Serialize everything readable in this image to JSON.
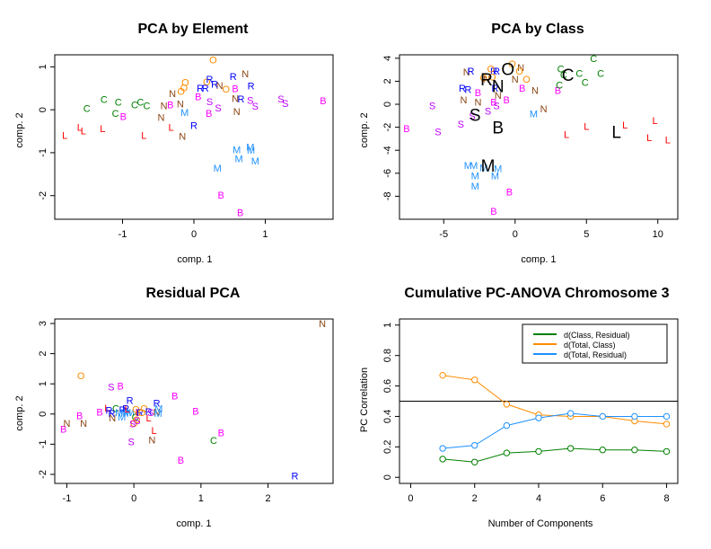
{
  "colors": {
    "B": "#ff00ff",
    "C": "#008000",
    "L": "#ff0000",
    "M": "#1e90ff",
    "N": "#8b4513",
    "O": "#ff8c00",
    "R": "#0000ff",
    "S": "#bf00ff",
    "centroid": "#000000"
  },
  "chart_data": [
    {
      "type": "scatter",
      "title": "PCA by Element",
      "xlabel": "comp. 1",
      "ylabel": "comp. 2",
      "xlim": [
        -1.95,
        1.95
      ],
      "ylim": [
        -2.55,
        1.28
      ],
      "xticks": [
        -1,
        0,
        1
      ],
      "yticks": [
        -2,
        -1,
        0,
        1
      ],
      "points": [
        {
          "x": -1.81,
          "y": -0.59,
          "label": "L"
        },
        {
          "x": -1.6,
          "y": -0.4,
          "label": "L"
        },
        {
          "x": -1.55,
          "y": -0.49,
          "label": "L"
        },
        {
          "x": -1.28,
          "y": -0.44,
          "label": "L"
        },
        {
          "x": -0.7,
          "y": -0.59,
          "label": "L"
        },
        {
          "x": -0.32,
          "y": -0.4,
          "label": "L"
        },
        {
          "x": -1.5,
          "y": 0.03,
          "label": "C"
        },
        {
          "x": -1.26,
          "y": 0.24,
          "label": "C"
        },
        {
          "x": -1.06,
          "y": 0.18,
          "label": "C"
        },
        {
          "x": -1.1,
          "y": -0.08,
          "label": "C"
        },
        {
          "x": -0.83,
          "y": 0.12,
          "label": "C"
        },
        {
          "x": -0.75,
          "y": 0.18,
          "label": "C"
        },
        {
          "x": -0.66,
          "y": 0.1,
          "label": "C"
        },
        {
          "x": -0.99,
          "y": -0.15,
          "label": "B"
        },
        {
          "x": -0.33,
          "y": 0.12,
          "label": "B"
        },
        {
          "x": 0.06,
          "y": 0.31,
          "label": "B"
        },
        {
          "x": 0.21,
          "y": -0.08,
          "label": "B"
        },
        {
          "x": 0.58,
          "y": 0.49,
          "label": "B"
        },
        {
          "x": 1.81,
          "y": 0.21,
          "label": "B"
        },
        {
          "x": 0.38,
          "y": -1.98,
          "label": "B"
        },
        {
          "x": 0.65,
          "y": -2.39,
          "label": "B"
        },
        {
          "x": -0.3,
          "y": 0.38,
          "label": "N"
        },
        {
          "x": -0.42,
          "y": 0.1,
          "label": "N"
        },
        {
          "x": -0.46,
          "y": -0.17,
          "label": "N"
        },
        {
          "x": -0.19,
          "y": 0.14,
          "label": "N"
        },
        {
          "x": -0.16,
          "y": -0.61,
          "label": "N"
        },
        {
          "x": 0.36,
          "y": 0.57,
          "label": "N"
        },
        {
          "x": 0.58,
          "y": 0.27,
          "label": "N"
        },
        {
          "x": 0.6,
          "y": -0.04,
          "label": "N"
        },
        {
          "x": 0.72,
          "y": 0.84,
          "label": "N"
        },
        {
          "x": -0.18,
          "y": 0.43,
          "label": "O"
        },
        {
          "x": -0.14,
          "y": 0.52,
          "label": "O"
        },
        {
          "x": -0.12,
          "y": 0.64,
          "label": "O"
        },
        {
          "x": 0.18,
          "y": 0.65,
          "label": "O"
        },
        {
          "x": 0.45,
          "y": 0.48,
          "label": "O"
        },
        {
          "x": 0.27,
          "y": 1.16,
          "label": "O"
        },
        {
          "x": 0.09,
          "y": 0.51,
          "label": "R"
        },
        {
          "x": 0.16,
          "y": 0.51,
          "label": "R"
        },
        {
          "x": 0.22,
          "y": 0.72,
          "label": "R"
        },
        {
          "x": 0.29,
          "y": 0.6,
          "label": "R"
        },
        {
          "x": 0.55,
          "y": 0.78,
          "label": "R"
        },
        {
          "x": 0.66,
          "y": 0.25,
          "label": "R"
        },
        {
          "x": 0.8,
          "y": 0.56,
          "label": "R"
        },
        {
          "x": 0.0,
          "y": -0.36,
          "label": "R"
        },
        {
          "x": -0.13,
          "y": -0.06,
          "label": "M"
        },
        {
          "x": 0.6,
          "y": -0.93,
          "label": "M"
        },
        {
          "x": 0.63,
          "y": -1.14,
          "label": "M"
        },
        {
          "x": 0.79,
          "y": -0.86,
          "label": "M"
        },
        {
          "x": 0.8,
          "y": -0.94,
          "label": "M"
        },
        {
          "x": 0.86,
          "y": -1.19,
          "label": "M"
        },
        {
          "x": 0.33,
          "y": -1.36,
          "label": "M"
        },
        {
          "x": 0.22,
          "y": 0.19,
          "label": "S"
        },
        {
          "x": 0.34,
          "y": 0.04,
          "label": "S"
        },
        {
          "x": 0.79,
          "y": 0.22,
          "label": "S"
        },
        {
          "x": 0.86,
          "y": 0.09,
          "label": "S"
        },
        {
          "x": 1.22,
          "y": 0.25,
          "label": "S"
        },
        {
          "x": 1.28,
          "y": 0.15,
          "label": "S"
        }
      ],
      "centroids": []
    },
    {
      "type": "scatter",
      "title": "PCA by Class",
      "xlabel": "comp. 1",
      "ylabel": "comp. 2",
      "xlim": [
        -8.1,
        11.4
      ],
      "ylim": [
        -10.0,
        4.3
      ],
      "xticks": [
        -5,
        0,
        5,
        10
      ],
      "yticks": [
        -8,
        -6,
        -4,
        -2,
        0,
        2,
        4
      ],
      "points": [
        {
          "x": -7.6,
          "y": -2.1,
          "label": "B"
        },
        {
          "x": -2.6,
          "y": 1.0,
          "label": "B"
        },
        {
          "x": -1.5,
          "y": 0.2,
          "label": "B"
        },
        {
          "x": -0.6,
          "y": 0.4,
          "label": "B"
        },
        {
          "x": 0.5,
          "y": 1.4,
          "label": "B"
        },
        {
          "x": 3.0,
          "y": 1.2,
          "label": "B"
        },
        {
          "x": -0.4,
          "y": -7.6,
          "label": "B"
        },
        {
          "x": -1.5,
          "y": -9.3,
          "label": "B"
        },
        {
          "x": -5.8,
          "y": -0.1,
          "label": "S"
        },
        {
          "x": -5.4,
          "y": -2.4,
          "label": "S"
        },
        {
          "x": -3.8,
          "y": -1.7,
          "label": "S"
        },
        {
          "x": -3.0,
          "y": -1.0,
          "label": "S"
        },
        {
          "x": -1.9,
          "y": -0.6,
          "label": "S"
        },
        {
          "x": -1.3,
          "y": -0.1,
          "label": "S"
        },
        {
          "x": -3.6,
          "y": 0.4,
          "label": "N"
        },
        {
          "x": -2.6,
          "y": 0.2,
          "label": "N"
        },
        {
          "x": -3.4,
          "y": 2.8,
          "label": "N"
        },
        {
          "x": -1.2,
          "y": 0.8,
          "label": "N"
        },
        {
          "x": -2.0,
          "y": 2.2,
          "label": "N"
        },
        {
          "x": 0.0,
          "y": 2.2,
          "label": "N"
        },
        {
          "x": 0.4,
          "y": 3.2,
          "label": "N"
        },
        {
          "x": 1.4,
          "y": 1.2,
          "label": "N"
        },
        {
          "x": 2.0,
          "y": -0.4,
          "label": "N"
        },
        {
          "x": -3.1,
          "y": 2.9,
          "label": "R"
        },
        {
          "x": -3.7,
          "y": 1.4,
          "label": "R"
        },
        {
          "x": -3.3,
          "y": 1.3,
          "label": "R"
        },
        {
          "x": -1.5,
          "y": 2.9,
          "label": "R"
        },
        {
          "x": -1.3,
          "y": 2.9,
          "label": "R"
        },
        {
          "x": -1.4,
          "y": 1.4,
          "label": "R"
        },
        {
          "x": -2.2,
          "y": 2.3,
          "label": "O"
        },
        {
          "x": -1.7,
          "y": 3.1,
          "label": "O"
        },
        {
          "x": -1.6,
          "y": 2.4,
          "label": "O"
        },
        {
          "x": -0.2,
          "y": 3.5,
          "label": "O"
        },
        {
          "x": 0.3,
          "y": 2.9,
          "label": "O"
        },
        {
          "x": 0.8,
          "y": 2.2,
          "label": "O"
        },
        {
          "x": -3.3,
          "y": -5.3,
          "label": "M"
        },
        {
          "x": -2.9,
          "y": -5.3,
          "label": "M"
        },
        {
          "x": -2.8,
          "y": -6.2,
          "label": "M"
        },
        {
          "x": -2.8,
          "y": -7.1,
          "label": "M"
        },
        {
          "x": -2.2,
          "y": -5.5,
          "label": "M"
        },
        {
          "x": -1.2,
          "y": -5.6,
          "label": "M"
        },
        {
          "x": -1.4,
          "y": -6.2,
          "label": "M"
        },
        {
          "x": 1.3,
          "y": -0.8,
          "label": "M"
        },
        {
          "x": 3.1,
          "y": 1.7,
          "label": "C"
        },
        {
          "x": 3.2,
          "y": 3.1,
          "label": "C"
        },
        {
          "x": 3.4,
          "y": 2.6,
          "label": "C"
        },
        {
          "x": 4.5,
          "y": 2.7,
          "label": "C"
        },
        {
          "x": 4.9,
          "y": 1.9,
          "label": "C"
        },
        {
          "x": 5.5,
          "y": 4.0,
          "label": "C"
        },
        {
          "x": 6.0,
          "y": 2.7,
          "label": "C"
        },
        {
          "x": 3.6,
          "y": -2.6,
          "label": "L"
        },
        {
          "x": 5.0,
          "y": -1.9,
          "label": "L"
        },
        {
          "x": 7.7,
          "y": -1.8,
          "label": "L"
        },
        {
          "x": 9.4,
          "y": -2.9,
          "label": "L"
        },
        {
          "x": 9.8,
          "y": -1.4,
          "label": "L"
        },
        {
          "x": 10.7,
          "y": -3.1,
          "label": "L"
        }
      ],
      "centroids": [
        {
          "x": -0.5,
          "y": 3.1,
          "label": "O"
        },
        {
          "x": -2.0,
          "y": 2.2,
          "label": "R"
        },
        {
          "x": -1.2,
          "y": 1.6,
          "label": "N"
        },
        {
          "x": 3.7,
          "y": 2.6,
          "label": "C"
        },
        {
          "x": -2.8,
          "y": -0.9,
          "label": "S"
        },
        {
          "x": -1.2,
          "y": -2.0,
          "label": "B"
        },
        {
          "x": 7.1,
          "y": -2.4,
          "label": "L"
        },
        {
          "x": -1.9,
          "y": -5.3,
          "label": "M"
        }
      ]
    },
    {
      "type": "scatter",
      "title": "Residual PCA",
      "xlabel": "comp. 1",
      "ylabel": "comp. 2",
      "xlim": [
        -1.18,
        2.97
      ],
      "ylim": [
        -2.3,
        3.15
      ],
      "xticks": [
        -1,
        0,
        1,
        2
      ],
      "yticks": [
        -2,
        -1,
        0,
        1,
        2,
        3
      ],
      "points": [
        {
          "x": 2.81,
          "y": 3.0,
          "label": "N"
        },
        {
          "x": 2.4,
          "y": -2.04,
          "label": "R"
        },
        {
          "x": -0.79,
          "y": 1.28,
          "label": "O"
        },
        {
          "x": -0.34,
          "y": 0.9,
          "label": "S"
        },
        {
          "x": -0.2,
          "y": 0.93,
          "label": "B"
        },
        {
          "x": 0.61,
          "y": 0.6,
          "label": "B"
        },
        {
          "x": 0.92,
          "y": 0.09,
          "label": "B"
        },
        {
          "x": 1.3,
          "y": -0.62,
          "label": "B"
        },
        {
          "x": 0.7,
          "y": -1.53,
          "label": "B"
        },
        {
          "x": 1.19,
          "y": -0.87,
          "label": "C"
        },
        {
          "x": 0.27,
          "y": -0.85,
          "label": "N"
        },
        {
          "x": 0.3,
          "y": -0.55,
          "label": "L"
        },
        {
          "x": -0.04,
          "y": -0.92,
          "label": "S"
        },
        {
          "x": -1.05,
          "y": -0.5,
          "label": "B"
        },
        {
          "x": -1.0,
          "y": -0.3,
          "label": "N"
        },
        {
          "x": -0.75,
          "y": -0.3,
          "label": "N"
        },
        {
          "x": -0.81,
          "y": -0.05,
          "label": "B"
        },
        {
          "x": -0.51,
          "y": 0.07,
          "label": "B"
        },
        {
          "x": -0.06,
          "y": 0.45,
          "label": "R"
        },
        {
          "x": 0.34,
          "y": 0.36,
          "label": "R"
        },
        {
          "x": -0.4,
          "y": 0.2,
          "label": "L"
        },
        {
          "x": -0.27,
          "y": 0.18,
          "label": "C"
        },
        {
          "x": -0.37,
          "y": 0.12,
          "label": "R"
        },
        {
          "x": -0.17,
          "y": 0.14,
          "label": "R"
        },
        {
          "x": -0.12,
          "y": 0.18,
          "label": "R"
        },
        {
          "x": -0.33,
          "y": 0.02,
          "label": "R"
        },
        {
          "x": -0.32,
          "y": -0.12,
          "label": "N"
        },
        {
          "x": -0.22,
          "y": 0.05,
          "label": "M"
        },
        {
          "x": -0.14,
          "y": 0.02,
          "label": "M"
        },
        {
          "x": -0.1,
          "y": 0.05,
          "label": "M"
        },
        {
          "x": -0.18,
          "y": -0.1,
          "label": "M"
        },
        {
          "x": -0.05,
          "y": 0.05,
          "label": "M"
        },
        {
          "x": -0.1,
          "y": 0.17,
          "label": "L"
        },
        {
          "x": 0.02,
          "y": -0.1,
          "label": "C"
        },
        {
          "x": 0.03,
          "y": 0.15,
          "label": "O"
        },
        {
          "x": 0.04,
          "y": -0.18,
          "label": "O"
        },
        {
          "x": 0.0,
          "y": -0.3,
          "label": "O"
        },
        {
          "x": 0.06,
          "y": 0.07,
          "label": "L"
        },
        {
          "x": 0.09,
          "y": 0.05,
          "label": "R"
        },
        {
          "x": 0.15,
          "y": 0.19,
          "label": "O"
        },
        {
          "x": 0.12,
          "y": 0.05,
          "label": "O"
        },
        {
          "x": 0.22,
          "y": -0.13,
          "label": "L"
        },
        {
          "x": 0.22,
          "y": 0.08,
          "label": "R"
        },
        {
          "x": 0.25,
          "y": 0.05,
          "label": "S"
        },
        {
          "x": 0.34,
          "y": 0.07,
          "label": "N"
        },
        {
          "x": 0.37,
          "y": 0.18,
          "label": "M"
        },
        {
          "x": 0.36,
          "y": 0.02,
          "label": "M"
        },
        {
          "x": 0.05,
          "y": -0.22,
          "label": "S"
        },
        {
          "x": -0.02,
          "y": -0.32,
          "label": "S"
        }
      ],
      "centroids": []
    },
    {
      "type": "line",
      "title": "Cumulative PC-ANOVA Chromosome 3",
      "xlabel": "Number of Components",
      "ylabel": "PC Correlation",
      "xlim": [
        -0.35,
        8.35
      ],
      "ylim": [
        -0.04,
        1.04
      ],
      "xticks": [
        0,
        2,
        4,
        6,
        8
      ],
      "yticks": [
        0.0,
        0.2,
        0.4,
        0.6,
        0.8,
        1.0
      ],
      "hline": 0.5,
      "legend_position": "top-right",
      "x": [
        1,
        2,
        3,
        4,
        5,
        6,
        7,
        8
      ],
      "series": [
        {
          "name": "d(Class, Residual)",
          "color": "#008000",
          "values": [
            0.12,
            0.1,
            0.16,
            0.17,
            0.19,
            0.18,
            0.18,
            0.17
          ]
        },
        {
          "name": "d(Total, Class)",
          "color": "#ff8c00",
          "values": [
            0.67,
            0.64,
            0.48,
            0.41,
            0.4,
            0.4,
            0.37,
            0.35
          ]
        },
        {
          "name": "d(Total, Residual)",
          "color": "#1e90ff",
          "values": [
            0.19,
            0.21,
            0.34,
            0.39,
            0.42,
            0.4,
            0.4,
            0.4
          ]
        }
      ]
    }
  ]
}
